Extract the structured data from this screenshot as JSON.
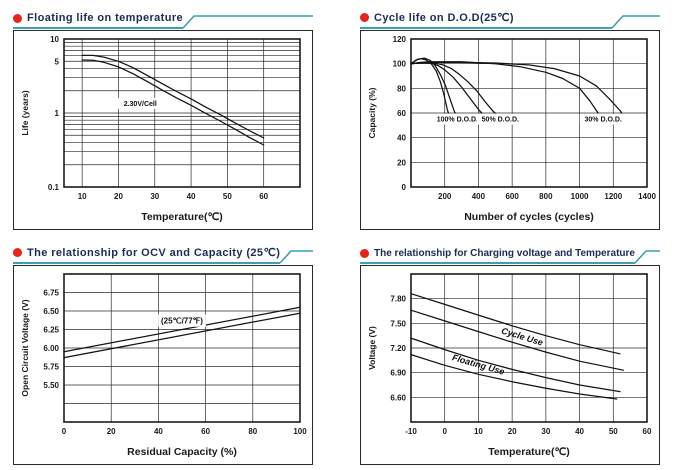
{
  "theme": {
    "accent_red": "#e8231d",
    "rule_teal": "#3aa0b2",
    "title_navy": "#1a2c55",
    "ink": "#1a1a1a"
  },
  "chart_data": [
    {
      "type": "line",
      "title": "Floating life on temperature",
      "xlabel": "Temperature(℃)",
      "ylabel": "Life (years)",
      "xlim": [
        5,
        70
      ],
      "ylim": [
        0.1,
        10
      ],
      "yscale": "log",
      "grid": "on",
      "legend": "none",
      "grid_x": [
        10,
        20,
        30,
        40,
        50,
        60
      ],
      "grid_y": [
        0.2,
        0.3,
        0.4,
        0.5,
        0.6,
        0.7,
        0.8,
        0.9,
        1,
        2,
        3,
        4,
        5,
        6,
        7,
        8,
        9
      ],
      "xticks": [
        {
          "v": 10,
          "t": "10"
        },
        {
          "v": 20,
          "t": "20"
        },
        {
          "v": 30,
          "t": "30"
        },
        {
          "v": 40,
          "t": "40"
        },
        {
          "v": 50,
          "t": "50"
        },
        {
          "v": 60,
          "t": "60"
        }
      ],
      "yticks": [
        {
          "v": 10,
          "t": "10"
        },
        {
          "v": 5,
          "t": "5"
        },
        {
          "v": 1,
          "t": "1"
        },
        {
          "v": 0.1,
          "t": "0.1"
        }
      ],
      "series": [
        {
          "name": "band-upper",
          "points": [
            [
              10,
              6.0
            ],
            [
              13,
              6.0
            ],
            [
              16,
              5.7
            ],
            [
              20,
              5.0
            ],
            [
              24,
              4.1
            ],
            [
              28,
              3.2
            ],
            [
              32,
              2.5
            ],
            [
              36,
              1.95
            ],
            [
              40,
              1.55
            ],
            [
              44,
              1.2
            ],
            [
              48,
              0.95
            ],
            [
              52,
              0.74
            ],
            [
              56,
              0.58
            ],
            [
              60,
              0.46
            ]
          ]
        },
        {
          "name": "band-lower",
          "points": [
            [
              10,
              5.2
            ],
            [
              13,
              5.15
            ],
            [
              16,
              4.85
            ],
            [
              20,
              4.2
            ],
            [
              24,
              3.4
            ],
            [
              28,
              2.65
            ],
            [
              32,
              2.05
            ],
            [
              36,
              1.6
            ],
            [
              40,
              1.27
            ],
            [
              44,
              0.99
            ],
            [
              48,
              0.78
            ],
            [
              52,
              0.61
            ],
            [
              56,
              0.47
            ],
            [
              60,
              0.37
            ]
          ]
        }
      ],
      "annotations": [
        {
          "text": "2.30V/Cell",
          "x": 26,
          "y": 1.35,
          "size": 7
        }
      ]
    },
    {
      "type": "line",
      "title": "Cycle life on D.O.D(25℃)",
      "xlabel": "Number of cycles (cycles)",
      "ylabel": "Capacity  (%)",
      "xlim": [
        0,
        1400
      ],
      "ylim": [
        0,
        120
      ],
      "grid": "on",
      "legend": "none",
      "grid_x": [
        200,
        400,
        600,
        800,
        1000,
        1200
      ],
      "grid_y": [
        20,
        40,
        60,
        80,
        100
      ],
      "xticks": [
        {
          "v": 200,
          "t": "200"
        },
        {
          "v": 400,
          "t": "400"
        },
        {
          "v": 600,
          "t": "600"
        },
        {
          "v": 800,
          "t": "800"
        },
        {
          "v": 1000,
          "t": "1000"
        },
        {
          "v": 1200,
          "t": "1200"
        },
        {
          "v": 1400,
          "t": "1400"
        }
      ],
      "yticks": [
        {
          "v": 0,
          "t": "0"
        },
        {
          "v": 20,
          "t": "20"
        },
        {
          "v": 40,
          "t": "40"
        },
        {
          "v": 60,
          "t": "60"
        },
        {
          "v": 80,
          "t": "80"
        },
        {
          "v": 100,
          "t": "100"
        },
        {
          "v": 120,
          "t": "120"
        }
      ],
      "series": [
        {
          "name": "dod100-a",
          "points": [
            [
              0,
              100
            ],
            [
              30,
              103
            ],
            [
              60,
              104
            ],
            [
              90,
              103
            ],
            [
              120,
              100
            ],
            [
              150,
              94
            ],
            [
              175,
              85
            ],
            [
              195,
              75
            ],
            [
              215,
              63
            ],
            [
              222,
              60
            ]
          ]
        },
        {
          "name": "dod100-b",
          "points": [
            [
              0,
              100
            ],
            [
              40,
              103.5
            ],
            [
              80,
              104.5
            ],
            [
              115,
              102.5
            ],
            [
              145,
              98
            ],
            [
              175,
              91
            ],
            [
              205,
              82
            ],
            [
              235,
              70
            ],
            [
              258,
              61
            ],
            [
              263,
              60
            ]
          ]
        },
        {
          "name": "dod50-a",
          "points": [
            [
              0,
              100
            ],
            [
              60,
              101
            ],
            [
              120,
              100.5
            ],
            [
              160,
              98.5
            ],
            [
              200,
              95
            ],
            [
              250,
              89
            ],
            [
              300,
              81
            ],
            [
              350,
              72
            ],
            [
              405,
              62
            ],
            [
              420,
              60
            ]
          ]
        },
        {
          "name": "dod50-b",
          "points": [
            [
              0,
              100
            ],
            [
              60,
              101
            ],
            [
              140,
              100.5
            ],
            [
              190,
              99
            ],
            [
              240,
              96
            ],
            [
              290,
              91
            ],
            [
              340,
              85
            ],
            [
              390,
              78
            ],
            [
              440,
              69
            ],
            [
              490,
              61
            ],
            [
              500,
              60
            ]
          ]
        },
        {
          "name": "dod30-a",
          "points": [
            [
              0,
              100
            ],
            [
              100,
              101.5
            ],
            [
              300,
              101.5
            ],
            [
              500,
              100
            ],
            [
              650,
              97.5
            ],
            [
              800,
              93
            ],
            [
              900,
              88
            ],
            [
              1000,
              80
            ],
            [
              1060,
              70
            ],
            [
              1100,
              62
            ],
            [
              1110,
              60
            ]
          ]
        },
        {
          "name": "dod30-b",
          "points": [
            [
              0,
              100
            ],
            [
              100,
              101
            ],
            [
              300,
              101
            ],
            [
              500,
              100.5
            ],
            [
              700,
              99
            ],
            [
              850,
              96
            ],
            [
              1000,
              90
            ],
            [
              1100,
              82
            ],
            [
              1180,
              71
            ],
            [
              1240,
              62
            ],
            [
              1250,
              60
            ]
          ]
        }
      ],
      "annotations": [
        {
          "text": "100% D.O.D.",
          "x": 275,
          "y": 55,
          "size": 7
        },
        {
          "text": "50% D.O.D.",
          "x": 530,
          "y": 55,
          "size": 7
        },
        {
          "text": "30% D.O.D.",
          "x": 1140,
          "y": 55,
          "size": 7
        }
      ]
    },
    {
      "type": "line",
      "title": "The relationship  for OCV and Capacity (25℃)",
      "xlabel": "Residual Capacity (%)",
      "ylabel": "Open Circuit Voltage (V)",
      "xlim": [
        0,
        100
      ],
      "ylim": [
        5.0,
        7.0
      ],
      "grid": "on",
      "legend": "none",
      "grid_x": [
        20,
        40,
        60,
        80
      ],
      "grid_y": [
        5.25,
        5.5,
        5.75,
        6.0,
        6.25,
        6.5,
        6.75
      ],
      "xticks": [
        {
          "v": 0,
          "t": "0"
        },
        {
          "v": 20,
          "t": "20"
        },
        {
          "v": 40,
          "t": "40"
        },
        {
          "v": 60,
          "t": "60"
        },
        {
          "v": 80,
          "t": "80"
        },
        {
          "v": 100,
          "t": "100"
        }
      ],
      "yticks": [
        {
          "v": 6.75,
          "t": "6.75"
        },
        {
          "v": 6.5,
          "t": "6.50"
        },
        {
          "v": 6.25,
          "t": "6.25"
        },
        {
          "v": 6.0,
          "t": "6.00"
        },
        {
          "v": 5.75,
          "t": "5.75"
        },
        {
          "v": 5.5,
          "t": "5.50"
        }
      ],
      "series": [
        {
          "name": "ocv-upper",
          "points": [
            [
              0,
              5.95
            ],
            [
              100,
              6.55
            ]
          ]
        },
        {
          "name": "ocv-lower",
          "points": [
            [
              0,
              5.87
            ],
            [
              100,
              6.47
            ]
          ]
        }
      ],
      "annotations": [
        {
          "text": "(25℃/77℉)",
          "x": 50,
          "y": 6.37,
          "size": 8
        }
      ]
    },
    {
      "type": "line",
      "title": "The relationship for Charging voltage and Temperature",
      "xlabel": "Temperature(℃)",
      "ylabel": "Voltage (V)",
      "xlim": [
        -10,
        60
      ],
      "ylim": [
        6.3,
        8.1
      ],
      "grid": "on",
      "legend": "none",
      "grid_x": [
        0,
        10,
        20,
        30,
        40,
        50
      ],
      "grid_y": [
        6.6,
        6.9,
        7.2,
        7.5,
        7.8
      ],
      "xticks": [
        {
          "v": -10,
          "t": "-10"
        },
        {
          "v": 0,
          "t": "0"
        },
        {
          "v": 10,
          "t": "10"
        },
        {
          "v": 20,
          "t": "20"
        },
        {
          "v": 30,
          "t": "30"
        },
        {
          "v": 40,
          "t": "40"
        },
        {
          "v": 50,
          "t": "50"
        },
        {
          "v": 60,
          "t": "60"
        }
      ],
      "yticks": [
        {
          "v": 7.8,
          "t": "7.80"
        },
        {
          "v": 7.5,
          "t": "7.50"
        },
        {
          "v": 7.2,
          "t": "7.20"
        },
        {
          "v": 6.9,
          "t": "6.90"
        },
        {
          "v": 6.6,
          "t": "6.60"
        }
      ],
      "series": [
        {
          "name": "cycle-upper",
          "points": [
            [
              -10,
              7.86
            ],
            [
              0,
              7.73
            ],
            [
              10,
              7.6
            ],
            [
              20,
              7.47
            ],
            [
              30,
              7.35
            ],
            [
              40,
              7.24
            ],
            [
              52,
              7.13
            ]
          ]
        },
        {
          "name": "cycle-lower",
          "points": [
            [
              -10,
              7.66
            ],
            [
              0,
              7.53
            ],
            [
              10,
              7.4
            ],
            [
              20,
              7.27
            ],
            [
              30,
              7.15
            ],
            [
              40,
              7.04
            ],
            [
              53,
              6.93
            ]
          ]
        },
        {
          "name": "floating-upper",
          "points": [
            [
              -10,
              7.32
            ],
            [
              0,
              7.18
            ],
            [
              10,
              7.05
            ],
            [
              20,
              6.94
            ],
            [
              30,
              6.84
            ],
            [
              40,
              6.75
            ],
            [
              52,
              6.67
            ]
          ]
        },
        {
          "name": "floating-lower",
          "points": [
            [
              -10,
              7.12
            ],
            [
              0,
              6.99
            ],
            [
              10,
              6.88
            ],
            [
              20,
              6.79
            ],
            [
              30,
              6.71
            ],
            [
              40,
              6.64
            ],
            [
              51,
              6.58
            ]
          ]
        }
      ],
      "annotations": [
        {
          "text": "Cycle Use",
          "x": 23,
          "y": 7.34,
          "size": 9,
          "rotate": 17,
          "italic": true,
          "bg": false
        },
        {
          "text": "Floating Use",
          "x": 10,
          "y": 7.0,
          "size": 9,
          "rotate": 16,
          "italic": true,
          "bg": false
        }
      ]
    }
  ]
}
